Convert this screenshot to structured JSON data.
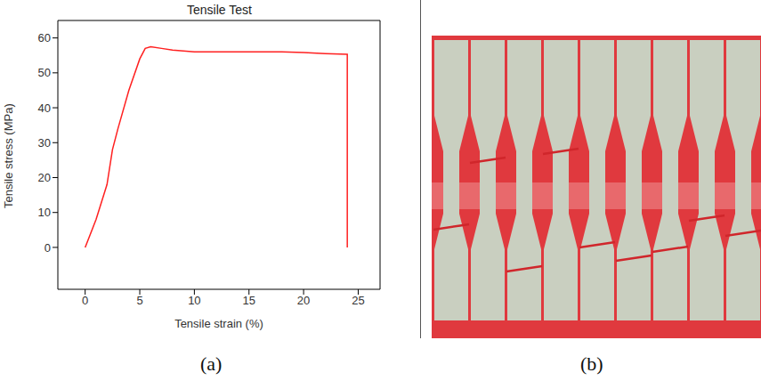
{
  "chart_data": {
    "type": "line",
    "title": "Tensile Test",
    "x_label": "Tensile strain (%)",
    "y_label": "Tensile stress (MPa)",
    "x": [
      0,
      1,
      2,
      2.5,
      3,
      4,
      5,
      5.5,
      6,
      7,
      8,
      10,
      12,
      15,
      18,
      20,
      22,
      24,
      24
    ],
    "values": [
      0,
      8,
      18,
      28,
      34,
      45,
      54,
      57,
      57.5,
      57,
      56.5,
      56,
      56,
      56,
      56,
      55.8,
      55.5,
      55.3,
      0
    ],
    "color": "#ff2020",
    "xlim": [
      -2.5,
      27
    ],
    "ylim": [
      -12,
      65
    ],
    "xticks": [
      0,
      5,
      10,
      15,
      20,
      25
    ],
    "yticks": [
      0,
      10,
      20,
      30,
      40,
      50,
      60
    ]
  },
  "panel_labels": [
    "(a)",
    "(b)"
  ]
}
